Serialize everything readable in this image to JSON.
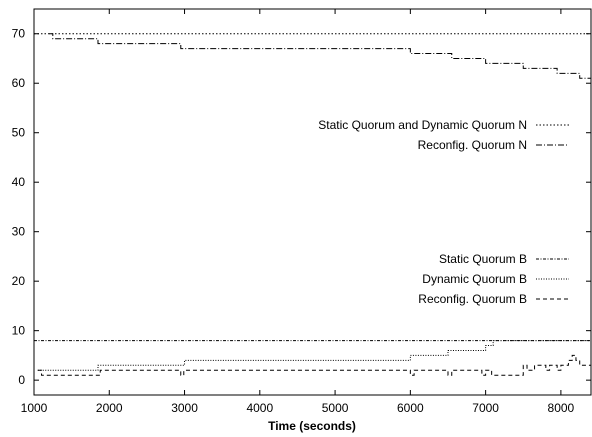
{
  "chart_data": {
    "type": "line",
    "title": "",
    "xlabel": "Time (seconds)",
    "ylabel": "",
    "xlim": [
      1000,
      8400
    ],
    "ylim": [
      -3,
      75
    ],
    "grid": false,
    "legend_placement": "right (two groups: upper and lower)",
    "x_ticks": [
      1000,
      2000,
      3000,
      4000,
      5000,
      6000,
      7000,
      8000
    ],
    "y_ticks": [
      0,
      10,
      20,
      30,
      40,
      50,
      60,
      70
    ],
    "series": [
      {
        "name": "Static Quorum and Dynamic Quorum N",
        "style": "dotted",
        "legend_group": "upper",
        "x": [
          1000,
          8400
        ],
        "y": [
          70,
          70
        ]
      },
      {
        "name": "Reconfig. Quorum N",
        "style": "dashdot",
        "legend_group": "upper",
        "x": [
          1200,
          1250,
          1850,
          2950,
          6000,
          6550,
          7000,
          7500,
          7950,
          8250,
          8400
        ],
        "y": [
          70,
          69,
          68,
          67,
          66,
          65,
          64,
          63,
          62,
          61,
          60
        ]
      },
      {
        "name": "Static Quorum B",
        "style": "dashdotdotted",
        "legend_group": "lower",
        "x": [
          1000,
          8400
        ],
        "y": [
          8,
          8
        ]
      },
      {
        "name": "Dynamic Quorum B",
        "style": "finedotted",
        "legend_group": "lower",
        "x": [
          1050,
          1850,
          3000,
          6000,
          6500,
          7000,
          7100,
          8400
        ],
        "y": [
          2,
          3,
          4,
          5,
          6,
          7,
          8,
          8
        ]
      },
      {
        "name": "Reconfig. Quorum B",
        "style": "dashed",
        "legend_group": "lower",
        "x": [
          1050,
          1100,
          1180,
          1850,
          1880,
          2950,
          2990,
          6000,
          6050,
          6500,
          6550,
          6950,
          7000,
          7080,
          7500,
          7550,
          7650,
          7800,
          7850,
          7950,
          8000,
          8100,
          8150,
          8200,
          8250,
          8300,
          8400
        ],
        "y": [
          2,
          1,
          1,
          1,
          2,
          1,
          2,
          1,
          2,
          1,
          2,
          1,
          2,
          1,
          3,
          2,
          3,
          2,
          3,
          2,
          3,
          4,
          5,
          4,
          3,
          3,
          3
        ]
      }
    ]
  }
}
